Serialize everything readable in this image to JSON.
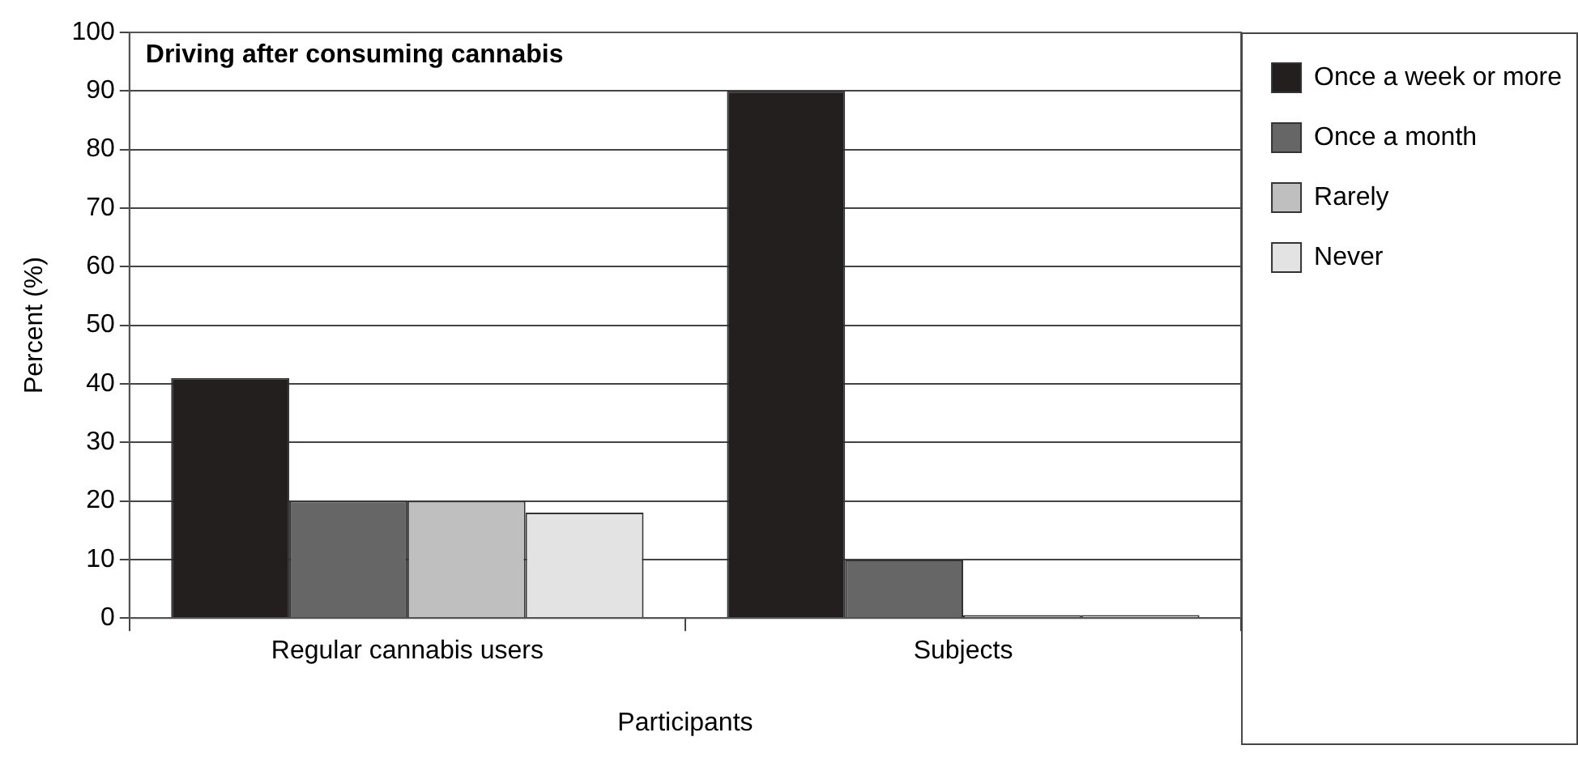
{
  "chart_data": {
    "type": "bar",
    "title": "Driving after consuming cannabis",
    "xlabel": "Participants",
    "ylabel": "Percent (%)",
    "categories": [
      "Regular cannabis users",
      "Subjects"
    ],
    "series": [
      {
        "name": "Once a week or more",
        "color": "#231f1f",
        "values": [
          41,
          90
        ]
      },
      {
        "name": "Once a month",
        "color": "#666666",
        "values": [
          20,
          10
        ]
      },
      {
        "name": "Rarely",
        "color": "#bfbfbf",
        "values": [
          20,
          0.5
        ]
      },
      {
        "name": "Never",
        "color": "#e3e3e3",
        "values": [
          18,
          0.5
        ]
      }
    ],
    "ylim": [
      0,
      100
    ],
    "yticks": [
      0,
      10,
      20,
      30,
      40,
      50,
      60,
      70,
      80,
      90,
      100
    ],
    "grid": "y",
    "legend": "right top"
  }
}
